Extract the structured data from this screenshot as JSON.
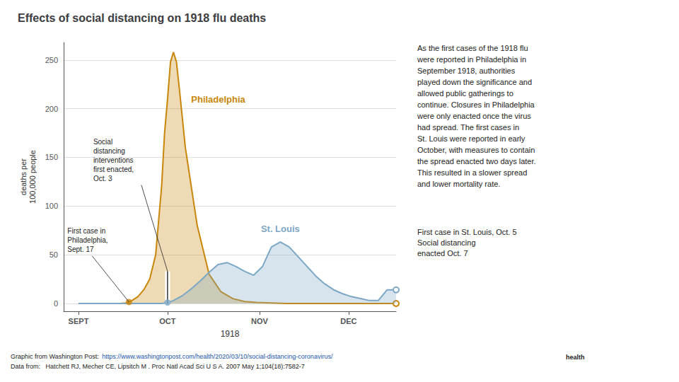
{
  "chart_data": {
    "type": "line",
    "title": "Effects of social distancing on 1918 flu deaths",
    "x_label": "1918",
    "y_label": "deaths per\n100,000 people",
    "xlim": [
      -5,
      107
    ],
    "xticks": [
      {
        "value": 0,
        "label": "SEPT"
      },
      {
        "value": 30,
        "label": "OCT"
      },
      {
        "value": 61,
        "label": "NOV"
      },
      {
        "value": 91,
        "label": "DEC"
      }
    ],
    "ylim": [
      -8,
      268
    ],
    "yticks": [
      0,
      50,
      100,
      150,
      200,
      250
    ],
    "grid": "y",
    "series": [
      {
        "name": "Philadelphia",
        "color": "#C8860A",
        "marker": "open_end",
        "x": [
          0,
          5,
          10,
          14,
          16,
          17,
          18,
          20,
          22,
          24,
          26,
          27,
          28,
          29,
          30,
          31,
          32,
          33,
          34,
          36,
          40,
          44,
          48,
          52,
          56,
          60,
          65,
          70,
          75,
          80,
          90,
          100,
          107
        ],
        "values": [
          0,
          0,
          0,
          0,
          0.5,
          1.5,
          3,
          7,
          14,
          25,
          50,
          85,
          120,
          175,
          210,
          248,
          258,
          248,
          220,
          160,
          80,
          30,
          12,
          5,
          2,
          1,
          0.5,
          0,
          0,
          0,
          0,
          0,
          0
        ]
      },
      {
        "name": "St. Louis",
        "color": "#7BA7C4",
        "marker": "open_end",
        "x": [
          0,
          25,
          28,
          30,
          32,
          35,
          38,
          41,
          44,
          47,
          50,
          53,
          56,
          59,
          62,
          65,
          68,
          71,
          74,
          77,
          80,
          83,
          86,
          89,
          92,
          95,
          98,
          101,
          104,
          107
        ],
        "values": [
          0,
          0,
          0,
          1,
          3,
          8,
          15,
          23,
          32,
          40,
          42,
          38,
          33,
          29,
          38,
          58,
          63,
          58,
          48,
          38,
          28,
          20,
          14,
          10,
          7,
          5,
          3,
          3,
          14,
          14
        ]
      }
    ],
    "annotations": [
      {
        "text": "Social\ndistancing\ninterventions\nfirst enacted,\nOct. 3",
        "x": 30,
        "y": [
          0,
          33
        ],
        "marker": "bar",
        "series": "Philadelphia"
      },
      {
        "text": "First case in\nPhiladelphia,\nSept. 17",
        "x": 17,
        "y": 1.5,
        "marker": "dot",
        "series": "Philadelphia"
      },
      {
        "text": "First case in St. Louis, Oct. 5\nSocial distancing\nenacted Oct. 7",
        "x": 30,
        "y": 1,
        "marker": "dot",
        "series": "St. Louis"
      }
    ],
    "narrative": "As the first cases of the 1918 flu\nwere reported in Philadelphia in\nSeptember 1918, authorities\nplayed down the significance and\nallowed public gatherings to\ncontinue. Closures in Philadelphia\nwere only enacted once the virus\nhad spread. The first cases in\nSt. Louis were reported in early\nOctober, with measures to contain\nthe spread enacted two days later.\nThis resulted in a slower spread\nand lower mortality rate.",
    "source": "Graphic from Washington Post: ",
    "source_url": "https://www.washingtonpost.com/health/2020/03/10/social-distancing-coronavirus/",
    "data_source": "Data from:   Hatchett RJ, Mecher CE, Lipsitch M . Proc Natl Acad Sci U S A. 2007 May 1;104(18):7582-7",
    "logo_text": "health"
  }
}
